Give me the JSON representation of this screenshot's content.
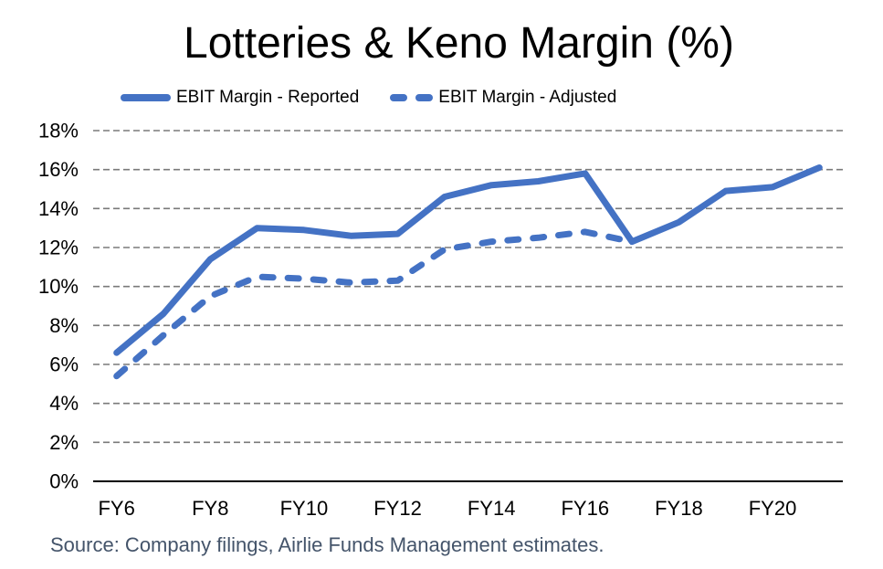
{
  "header": {
    "title": "Lotteries & Keno Margin (%)"
  },
  "legend": {
    "reported_label": "EBIT Margin - Reported",
    "adjusted_label": "EBIT Margin - Adjusted"
  },
  "source": {
    "text": "Source: Company filings, Airlie Funds Management estimates."
  },
  "colors": {
    "line_blue": "#4472C4",
    "gridline_gray": "#7A7A7A",
    "axis_black": "#000000",
    "source_slate": "#44546A",
    "text_black": "#000000"
  },
  "chart_data": {
    "type": "line",
    "title": "Lotteries & Keno Margin (%)",
    "categories": [
      "FY6",
      "FY7",
      "FY8",
      "FY9",
      "FY10",
      "FY11",
      "FY12",
      "FY13",
      "FY14",
      "FY15",
      "FY16",
      "FY17",
      "FY18",
      "FY19",
      "FY20",
      "FY21"
    ],
    "x_tick_labels": [
      "FY6",
      "FY8",
      "FY10",
      "FY12",
      "FY14",
      "FY16",
      "FY18",
      "FY20"
    ],
    "series": [
      {
        "name": "EBIT Margin - Reported",
        "style": "solid",
        "values": [
          6.6,
          8.6,
          11.4,
          13.0,
          12.9,
          12.6,
          12.7,
          14.6,
          15.2,
          15.4,
          15.8,
          12.3,
          13.3,
          14.9,
          15.1,
          16.1
        ]
      },
      {
        "name": "EBIT Margin - Adjusted",
        "style": "dashed",
        "values": [
          5.4,
          7.5,
          9.5,
          10.5,
          10.4,
          10.2,
          10.3,
          11.9,
          12.3,
          12.5,
          12.8,
          12.3,
          null,
          null,
          null,
          null
        ]
      }
    ],
    "ylabel": "",
    "xlabel": "",
    "ylim": [
      0,
      18
    ],
    "ytick_step": 2,
    "ytick_suffix": "%",
    "grid": true,
    "legend_position": "top"
  }
}
